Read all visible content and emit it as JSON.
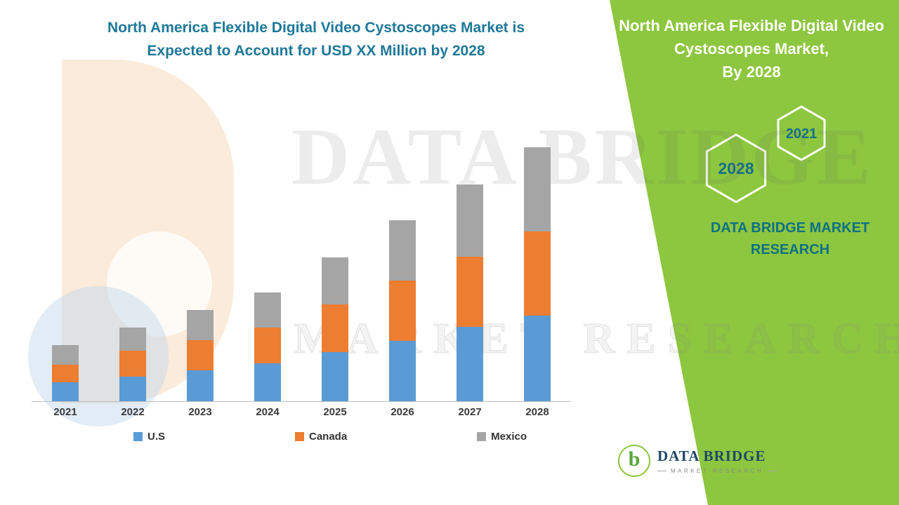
{
  "header": {
    "title_line1": "North America Flexible Digital Video Cystoscopes Market is",
    "title_line2": "Expected to Account for USD XX Million by 2028"
  },
  "chart_data": {
    "type": "bar",
    "stacked": true,
    "title": "North America Flexible Digital Video Cystoscopes Market is Expected to Account for USD XX Million by 2028",
    "categories": [
      "2021",
      "2022",
      "2023",
      "2024",
      "2025",
      "2026",
      "2027",
      "2028"
    ],
    "series": [
      {
        "name": "U.S",
        "color": "#5B9BD5",
        "values": [
          27,
          35,
          44,
          54,
          70,
          86,
          106,
          122
        ]
      },
      {
        "name": "Canada",
        "color": "#ED7D31",
        "values": [
          25,
          37,
          43,
          51,
          68,
          86,
          100,
          120
        ]
      },
      {
        "name": "Mexico",
        "color": "#A5A5A5",
        "values": [
          28,
          33,
          43,
          50,
          67,
          86,
          103,
          120
        ]
      }
    ],
    "value_note": "relative units; actual figures masked as USD XX Million",
    "xlabel": "",
    "ylabel": "",
    "ylim": [
      0,
      380
    ],
    "grid": false,
    "legend_position": "bottom"
  },
  "side_panel": {
    "background_color": "#8DC63F",
    "title_line1": "North America Flexible Digital Video",
    "title_line2": "Cystoscopes Market,",
    "title_line3": "By 2028",
    "hex_front_year": "2028",
    "hex_back_year": "2021",
    "brand_line1": "DATA BRIDGE MARKET",
    "brand_line2": "RESEARCH",
    "accent_text_color": "#0E7183"
  },
  "watermark": {
    "line1": "DATA BRIDGE",
    "line2": "MARKET RESEARCH"
  },
  "footer_logo": {
    "monogram": "b",
    "brand": "DATA BRIDGE",
    "tagline": "MARKET RESEARCH"
  }
}
